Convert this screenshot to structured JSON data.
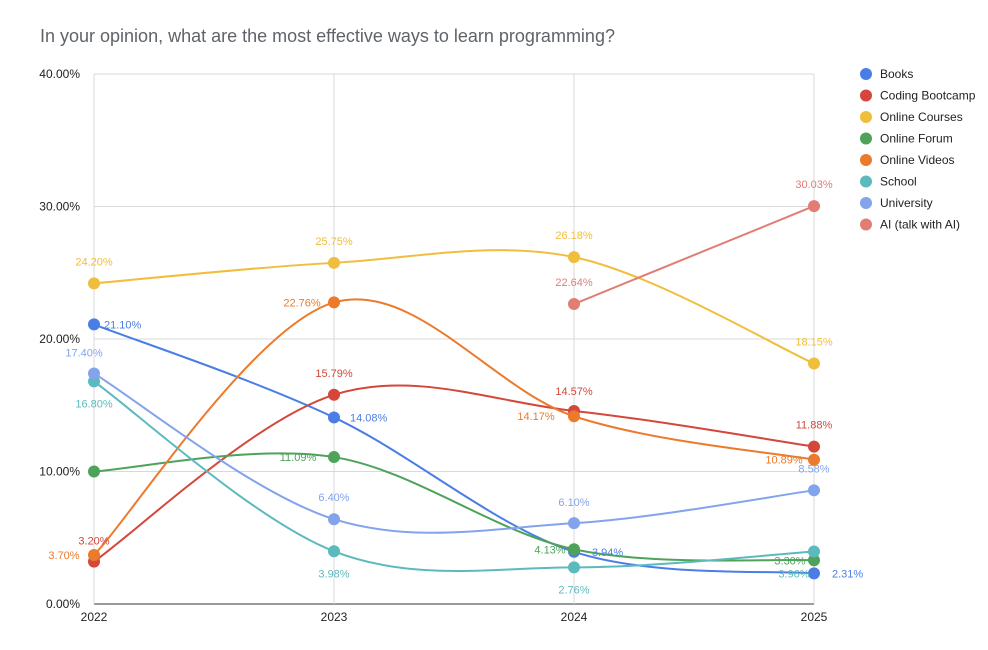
{
  "chart_data": {
    "type": "line",
    "title": "In your opinion, what are the most effective ways to learn programming?",
    "xlabel": "",
    "ylabel": "",
    "x": [
      "2022",
      "2023",
      "2024",
      "2025"
    ],
    "ylim": [
      0,
      40
    ],
    "yticks": [
      "0.00%",
      "10.00%",
      "20.00%",
      "30.00%",
      "40.00%"
    ],
    "grid": true,
    "legend_position": "right",
    "smooth": true,
    "series": [
      {
        "name": "Books",
        "color": "#4a7ee5",
        "values": [
          21.1,
          14.08,
          3.94,
          2.31
        ],
        "labels": [
          "21.10%",
          "14.08%",
          "3.94%",
          "2.31%"
        ]
      },
      {
        "name": "Coding Bootcamp",
        "color": "#d4473a",
        "values": [
          3.2,
          15.79,
          14.57,
          11.88
        ],
        "labels": [
          "3.20%",
          "15.79%",
          "14.57%",
          "11.88%"
        ]
      },
      {
        "name": "Online Courses",
        "color": "#f0be3c",
        "values": [
          24.2,
          25.75,
          26.18,
          18.15
        ],
        "labels": [
          "24.20%",
          "25.75%",
          "26.18%",
          "18.15%"
        ]
      },
      {
        "name": "Online Forum",
        "color": "#4ea25a",
        "values": [
          10.0,
          11.09,
          4.13,
          3.3
        ],
        "labels": [
          "",
          "11.09%",
          "4.13%",
          "3.30%"
        ]
      },
      {
        "name": "Online Videos",
        "color": "#ec7a2c",
        "values": [
          3.7,
          22.76,
          14.17,
          10.89
        ],
        "labels": [
          "3.70%",
          "22.76%",
          "14.17%",
          "10.89%"
        ]
      },
      {
        "name": "School",
        "color": "#5bbabd",
        "values": [
          16.8,
          3.98,
          2.76,
          3.96
        ],
        "labels": [
          "16.80%",
          "3.98%",
          "2.76%",
          "3.96%"
        ]
      },
      {
        "name": "University",
        "color": "#83a3ec",
        "values": [
          17.4,
          6.4,
          6.1,
          8.58
        ],
        "labels": [
          "17.40%",
          "6.40%",
          "6.10%",
          "8.58%"
        ]
      },
      {
        "name": "AI (talk with AI)",
        "color": "#e07e74",
        "values": [
          null,
          null,
          22.64,
          30.03
        ],
        "labels": [
          "",
          "",
          "22.64%",
          "30.03%"
        ]
      }
    ]
  }
}
